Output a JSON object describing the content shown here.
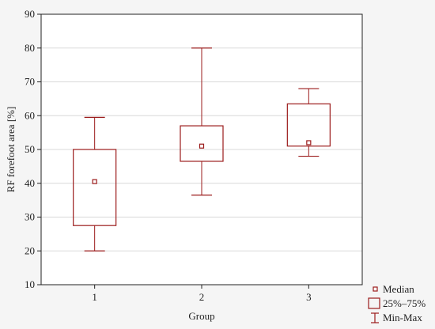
{
  "chart_data": {
    "type": "boxplot",
    "title": "",
    "xlabel": "Group",
    "ylabel": "RF forefoot area [%]",
    "ylim": [
      10,
      90
    ],
    "yticks": [
      10,
      20,
      30,
      40,
      50,
      60,
      70,
      80,
      90
    ],
    "categories": [
      "1",
      "2",
      "3"
    ],
    "grid": "horizontal",
    "legend_position": "bottom-right",
    "colors": {
      "box": "#9b1b1b",
      "grid": "#d9d9d9",
      "axis": "#222222",
      "plot_background": "#ffffff",
      "page_background": "#f5f5f5"
    },
    "series": [
      {
        "category": "1",
        "min": 20,
        "q1": 27.5,
        "median": 40.5,
        "q3": 50,
        "max": 59.5
      },
      {
        "category": "2",
        "min": 36.5,
        "q1": 46.5,
        "median": 51,
        "q3": 57,
        "max": 80
      },
      {
        "category": "3",
        "min": 48,
        "q1": 51,
        "median": 52,
        "q3": 63.5,
        "max": 68
      }
    ],
    "legend": [
      {
        "symbol": "median",
        "label": "Median"
      },
      {
        "symbol": "box",
        "label": "25%–75%"
      },
      {
        "symbol": "whisker",
        "label": "Min-Max"
      }
    ]
  }
}
